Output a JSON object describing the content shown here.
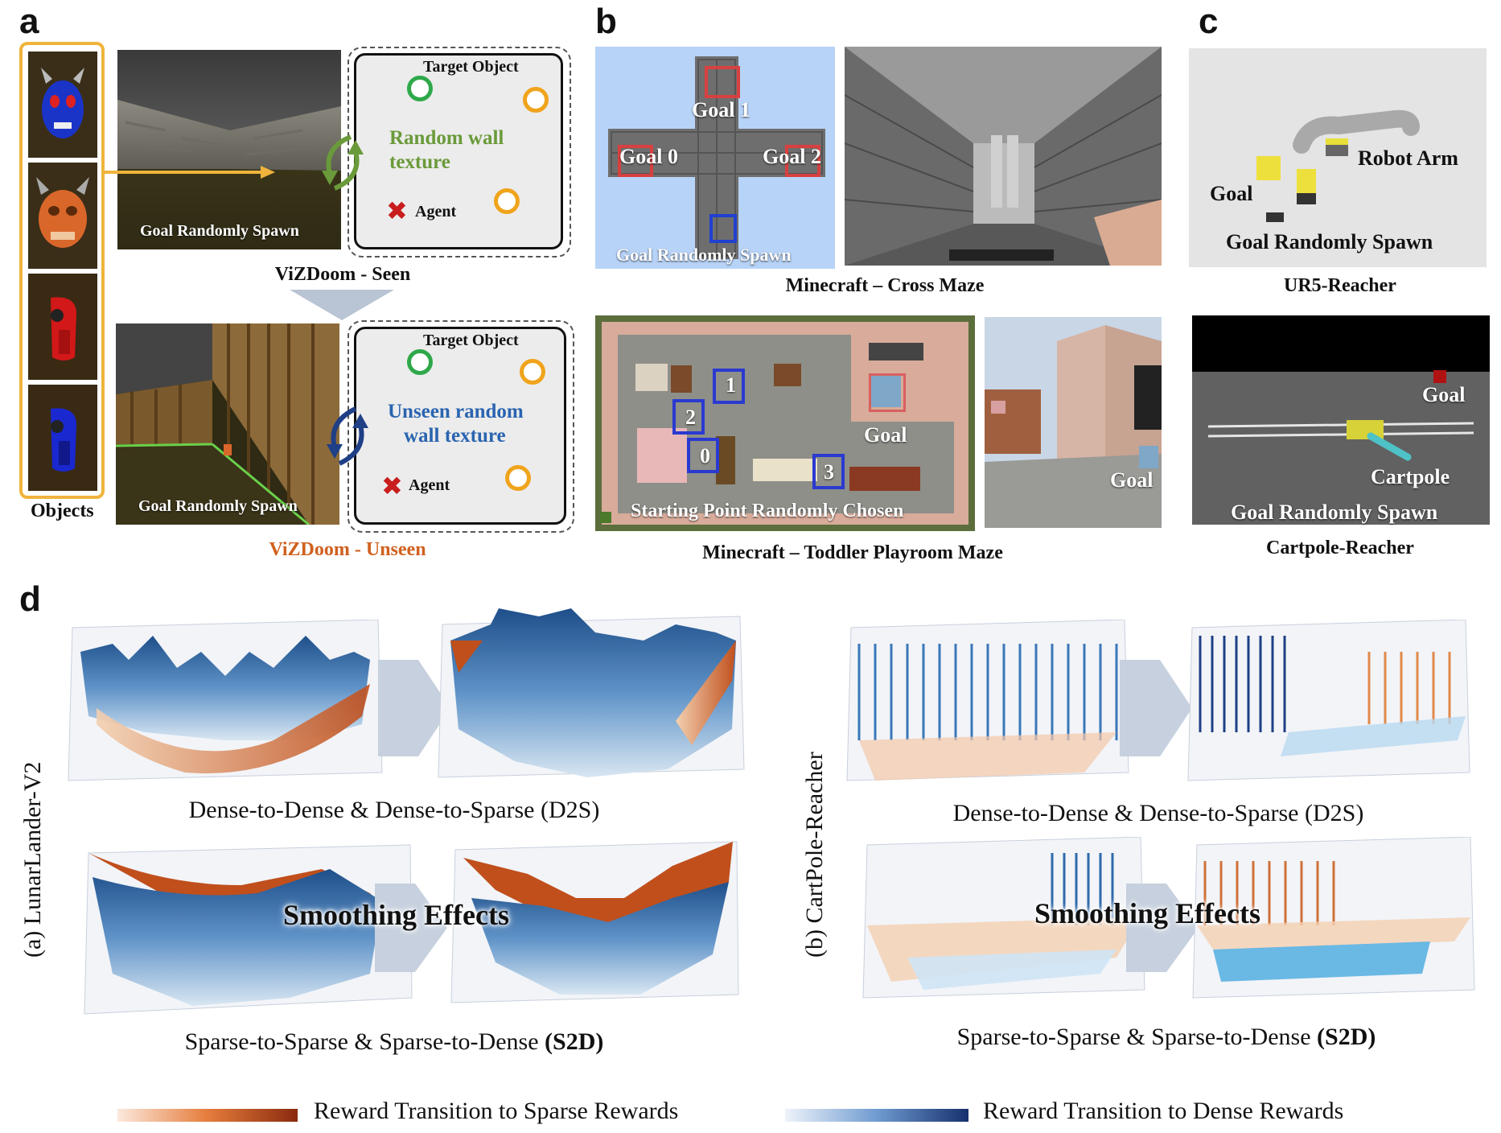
{
  "panels": {
    "a": {
      "letter": "a",
      "objects_label": "Objects",
      "seen": {
        "caption": "ViZDoom - Seen",
        "scene_label": "Goal Randomly Spawn",
        "target_label": "Target Object",
        "wall_label_1": "Random wall",
        "wall_label_2": "texture",
        "agent_label": "Agent"
      },
      "unseen": {
        "caption": "ViZDoom - Unseen",
        "scene_label": "Goal Randomly Spawn",
        "target_label": "Target Object",
        "wall_label_1": "Unseen random",
        "wall_label_2": "wall texture",
        "agent_label": "Agent"
      },
      "colors": {
        "seen_text": "#6a9a3a",
        "unseen_text": "#2a64b0",
        "unseen_caption": "#d0601e",
        "objects_frame": "#f0b43c"
      }
    },
    "b": {
      "letter": "b",
      "cross": {
        "caption": "Minecraft – Cross Maze",
        "goal0": "Goal 0",
        "goal1": "Goal 1",
        "goal2": "Goal 2",
        "spawn": "Goal Randomly Spawn"
      },
      "toddler": {
        "caption": "Minecraft – Toddler Playroom Maze",
        "n0": "0",
        "n1": "1",
        "n2": "2",
        "n3": "3",
        "goal": "Goal",
        "start": "Starting Point Randomly Chosen",
        "goal_side": "Goal"
      }
    },
    "c": {
      "letter": "c",
      "ur5": {
        "caption": "UR5-Reacher",
        "robot": "Robot Arm",
        "goal": "Goal",
        "spawn": "Goal Randomly Spawn"
      },
      "cartpole": {
        "caption": "Cartpole-Reacher",
        "goal": "Goal",
        "cartpole": "Cartpole",
        "spawn": "Goal Randomly Spawn"
      }
    },
    "d": {
      "letter": "d",
      "left_side_label": "(a) LunarLander-V2",
      "right_side_label": "(b) CartPole-Reacher",
      "left_top_caption": "Dense-to-Dense & Dense-to-Sparse (D2S)",
      "left_bottom_caption_main": "Sparse-to-Sparse & Sparse-to-Dense ",
      "left_bottom_caption_bold": "(S2D)",
      "right_top_caption": "Dense-to-Dense & Dense-to-Sparse (D2S)",
      "right_bottom_caption_main": "Sparse-to-Sparse & Sparse-to-Dense ",
      "right_bottom_caption_bold": "(S2D)",
      "smoothing_left": "Smoothing Effects",
      "smoothing_right": "Smoothing Effects",
      "legend_sparse": "Reward Transition to Sparse Rewards",
      "legend_dense": "Reward Transition to Dense Rewards",
      "colors": {
        "sparse": "#b8441a",
        "dense": "#1f3f86"
      }
    }
  }
}
